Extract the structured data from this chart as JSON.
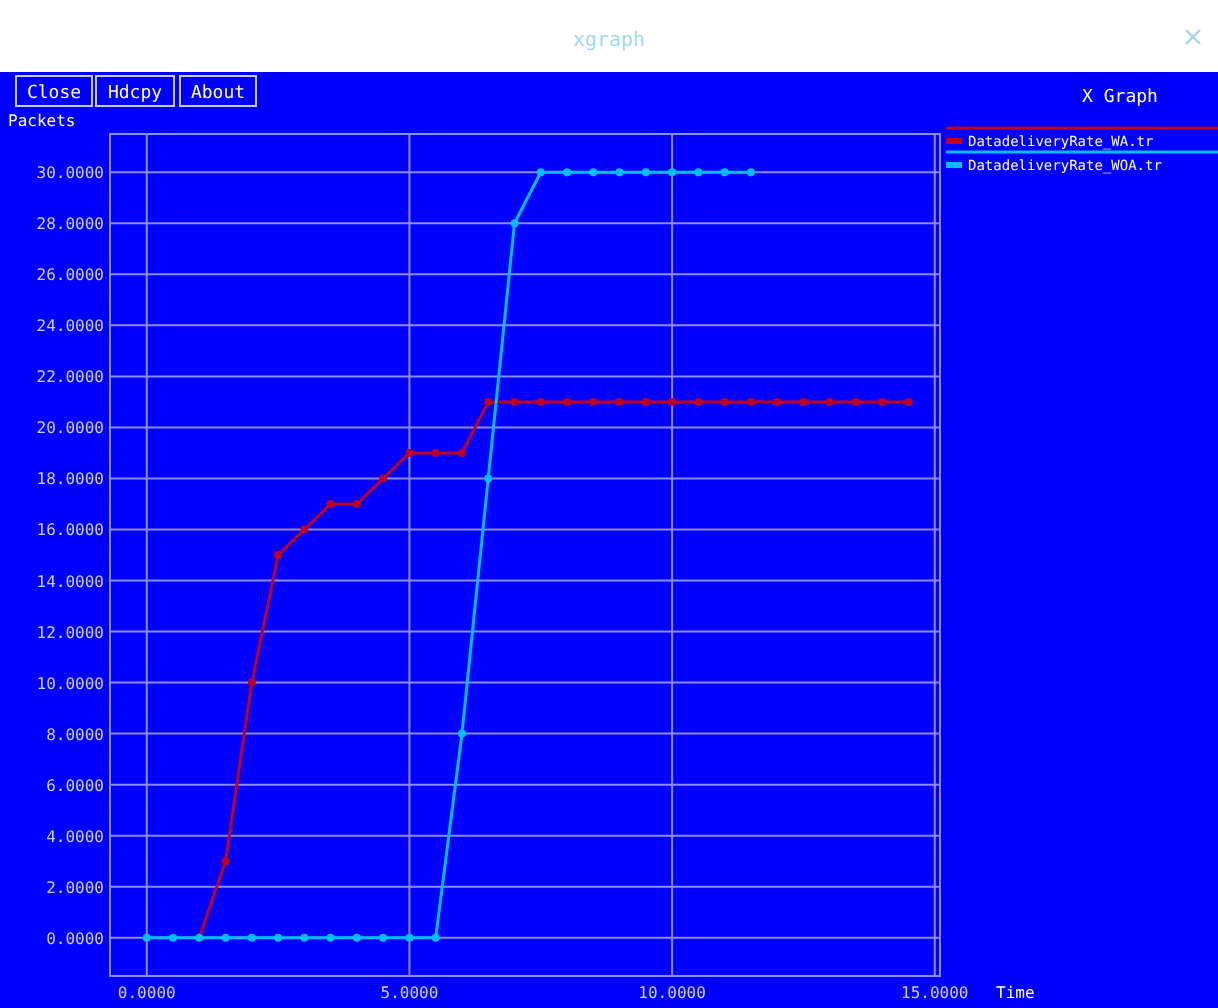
{
  "chart_data": {
    "type": "line",
    "title": "X Graph",
    "xlabel": "Time",
    "ylabel": "Packets",
    "annotations": [
      "xgraph",
      "Close",
      "Hdcpy",
      "About"
    ],
    "xlim": [
      -0.7,
      15.1
    ],
    "ylim": [
      -1.5,
      31.5
    ],
    "xticks": [
      {
        "value": 0,
        "label": "0.0000"
      },
      {
        "value": 5,
        "label": "5.0000"
      },
      {
        "value": 10,
        "label": "10.0000"
      },
      {
        "value": 15,
        "label": "15.0000"
      }
    ],
    "yticks": [
      {
        "value": 0,
        "label": "0.0000"
      },
      {
        "value": 2,
        "label": "2.0000"
      },
      {
        "value": 4,
        "label": "4.0000"
      },
      {
        "value": 6,
        "label": "6.0000"
      },
      {
        "value": 8,
        "label": "8.0000"
      },
      {
        "value": 10,
        "label": "10.0000"
      },
      {
        "value": 12,
        "label": "12.0000"
      },
      {
        "value": 14,
        "label": "14.0000"
      },
      {
        "value": 16,
        "label": "16.0000"
      },
      {
        "value": 18,
        "label": "18.0000"
      },
      {
        "value": 20,
        "label": "20.0000"
      },
      {
        "value": 22,
        "label": "22.0000"
      },
      {
        "value": 24,
        "label": "24.0000"
      },
      {
        "value": 26,
        "label": "26.0000"
      },
      {
        "value": 28,
        "label": "28.0000"
      },
      {
        "value": 30,
        "label": "30.0000"
      }
    ],
    "grid": true,
    "legend": "top right",
    "marker": "circle",
    "series": [
      {
        "name": "DatadeliveryRate_WA.tr",
        "color": "#c00020",
        "x": [
          1,
          1.5,
          2,
          2.5,
          3,
          3.5,
          4,
          4.5,
          5,
          5.5,
          6,
          6.5,
          7,
          7.5,
          8,
          8.5,
          9,
          9.5,
          10,
          10.5,
          11,
          11.5,
          12,
          12.5,
          13,
          13.5,
          14,
          14.5
        ],
        "values": [
          0,
          3,
          10,
          15,
          16,
          17,
          17,
          18,
          19,
          19,
          19,
          21,
          21,
          21,
          21,
          21,
          21,
          21,
          21,
          21,
          21,
          21,
          21,
          21,
          21,
          21,
          21,
          21
        ]
      },
      {
        "name": "DatadeliveryRate_WOA.tr",
        "color": "#00c0ff",
        "x": [
          0,
          0.5,
          1,
          1.5,
          2,
          2.5,
          3,
          3.5,
          4,
          4.5,
          5,
          5.5,
          6,
          6.5,
          7,
          7.5,
          8,
          8.5,
          9,
          9.5,
          10,
          10.5,
          11,
          11.5
        ],
        "values": [
          0,
          0,
          0,
          0,
          0,
          0,
          0,
          0,
          0,
          0,
          0,
          0,
          8,
          18,
          28,
          30,
          30,
          30,
          30,
          30,
          30,
          30,
          30,
          30
        ]
      }
    ]
  }
}
